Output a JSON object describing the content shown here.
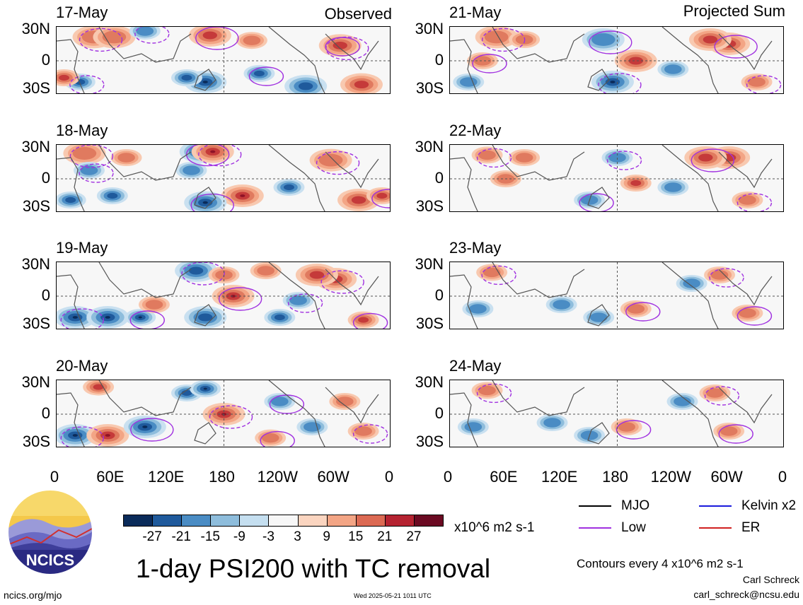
{
  "header": {
    "left_label": "Observed",
    "right_label": "Projected Sum"
  },
  "chart_data": {
    "type": "heatmap",
    "title": "1-day PSI200 with TC removal",
    "units": "x10^6 m2 s-1",
    "contour_note": "Contours every 4 x10^6 m2 s-1",
    "y_ticks": [
      "30N",
      "0",
      "30S"
    ],
    "x_ticks": [
      "0",
      "60E",
      "120E",
      "180",
      "120W",
      "60W",
      "0"
    ],
    "colorbar": {
      "ticks": [
        "-27",
        "-21",
        "-15",
        "-9",
        "-3",
        "3",
        "9",
        "15",
        "21",
        "27"
      ],
      "colors": [
        "#0a2b5a",
        "#1f5a9c",
        "#4a8cc4",
        "#8ebddc",
        "#c5dff0",
        "#f7f7f7",
        "#fbd5c0",
        "#f3a585",
        "#dc6a53",
        "#b52331",
        "#6b0a22"
      ]
    },
    "legend": [
      {
        "name": "MJO",
        "color": "#000000"
      },
      {
        "name": "Kelvin x2",
        "color": "#1a1adc"
      },
      {
        "name": "Low",
        "color": "#a030e0"
      },
      {
        "name": "ER",
        "color": "#d02020"
      }
    ],
    "observed_panels": [
      {
        "date": "17-May",
        "blobs": [
          [
            40,
            28,
            1,
            2
          ],
          [
            62,
            28,
            1,
            2
          ],
          [
            165,
            30,
            2,
            2
          ],
          [
            210,
            24,
            1,
            1
          ],
          [
            95,
            35,
            -1,
            1
          ],
          [
            160,
            -25,
            -3,
            2
          ],
          [
            218,
            -15,
            -2,
            1
          ],
          [
            268,
            -30,
            -2,
            2
          ],
          [
            25,
            -25,
            -2,
            1
          ],
          [
            140,
            -20,
            -2,
            1
          ],
          [
            300,
            20,
            1,
            1
          ],
          [
            328,
            -28,
            2,
            2
          ],
          [
            305,
            18,
            2,
            2
          ],
          [
            8,
            -20,
            2,
            1
          ]
        ]
      },
      {
        "date": "18-May",
        "blobs": [
          [
            30,
            30,
            1,
            2
          ],
          [
            75,
            25,
            1,
            1
          ],
          [
            155,
            32,
            -3,
            2
          ],
          [
            145,
            10,
            -1,
            1
          ],
          [
            168,
            32,
            3,
            2
          ],
          [
            200,
            -20,
            3,
            2
          ],
          [
            160,
            -28,
            -3,
            2
          ],
          [
            250,
            -10,
            -2,
            1
          ],
          [
            295,
            22,
            1,
            2
          ],
          [
            325,
            -25,
            2,
            2
          ],
          [
            350,
            -20,
            2,
            1
          ],
          [
            15,
            -25,
            -2,
            1
          ],
          [
            35,
            10,
            -1,
            1
          ],
          [
            60,
            -20,
            -2,
            1
          ]
        ]
      },
      {
        "date": "19-May",
        "blobs": [
          [
            20,
            -25,
            -3,
            2
          ],
          [
            55,
            -25,
            -3,
            2
          ],
          [
            90,
            -25,
            -3,
            1
          ],
          [
            160,
            -25,
            -2,
            2
          ],
          [
            150,
            30,
            -2,
            2
          ],
          [
            180,
            25,
            1,
            1
          ],
          [
            190,
            0,
            3,
            2
          ],
          [
            105,
            -10,
            1,
            1
          ],
          [
            300,
            20,
            2,
            2
          ],
          [
            280,
            25,
            2,
            2
          ],
          [
            330,
            -28,
            2,
            1
          ],
          [
            225,
            30,
            1,
            1
          ],
          [
            260,
            -5,
            -1,
            1
          ],
          [
            240,
            -25,
            -2,
            1
          ]
        ]
      },
      {
        "date": "20-May",
        "blobs": [
          [
            20,
            -25,
            -3,
            2
          ],
          [
            55,
            -25,
            3,
            2
          ],
          [
            95,
            -15,
            -3,
            2
          ],
          [
            140,
            25,
            -2,
            1
          ],
          [
            180,
            0,
            3,
            2
          ],
          [
            160,
            30,
            -3,
            1
          ],
          [
            240,
            15,
            -1,
            1
          ],
          [
            310,
            15,
            1,
            1
          ],
          [
            330,
            -20,
            1,
            1
          ],
          [
            45,
            32,
            2,
            1
          ],
          [
            230,
            -28,
            1,
            1
          ],
          [
            275,
            -15,
            -1,
            1
          ]
        ]
      }
    ],
    "projected_panels": [
      {
        "date": "21-May",
        "blobs": [
          [
            50,
            28,
            1,
            2
          ],
          [
            80,
            25,
            1,
            1
          ],
          [
            165,
            25,
            -1,
            2
          ],
          [
            200,
            0,
            2,
            2
          ],
          [
            175,
            -25,
            -3,
            2
          ],
          [
            240,
            -10,
            -1,
            1
          ],
          [
            300,
            20,
            2,
            2
          ],
          [
            280,
            25,
            2,
            2
          ],
          [
            330,
            -25,
            1,
            1
          ],
          [
            20,
            -25,
            -1,
            1
          ],
          [
            35,
            0,
            1,
            1
          ]
        ]
      },
      {
        "date": "22-May",
        "blobs": [
          [
            40,
            28,
            1,
            1
          ],
          [
            80,
            25,
            1,
            1
          ],
          [
            150,
            -25,
            -1,
            1
          ],
          [
            200,
            -5,
            2,
            1
          ],
          [
            180,
            25,
            -1,
            1
          ],
          [
            300,
            25,
            2,
            2
          ],
          [
            275,
            25,
            2,
            2
          ],
          [
            240,
            -10,
            -1,
            1
          ],
          [
            320,
            -25,
            1,
            1
          ],
          [
            60,
            0,
            1,
            1
          ]
        ]
      },
      {
        "date": "23-May",
        "blobs": [
          [
            45,
            28,
            1,
            1
          ],
          [
            120,
            -10,
            -1,
            1
          ],
          [
            200,
            -15,
            1,
            1
          ],
          [
            160,
            -25,
            -1,
            1
          ],
          [
            290,
            25,
            1,
            1
          ],
          [
            260,
            15,
            -1,
            1
          ],
          [
            320,
            -20,
            1,
            1
          ],
          [
            30,
            -15,
            -1,
            1
          ]
        ]
      },
      {
        "date": "24-May",
        "blobs": [
          [
            40,
            28,
            1,
            1
          ],
          [
            110,
            -10,
            -1,
            1
          ],
          [
            190,
            -15,
            1,
            1
          ],
          [
            150,
            -25,
            -1,
            1
          ],
          [
            285,
            25,
            1,
            1
          ],
          [
            250,
            15,
            -1,
            1
          ],
          [
            300,
            -20,
            1,
            1
          ],
          [
            25,
            -15,
            -1,
            1
          ]
        ]
      }
    ]
  },
  "footer": {
    "logo_text": "NCICS",
    "website": "ncics.org/mjo",
    "timestamp": "Wed 2025-05-21 1011 UTC",
    "author": "Carl Schreck",
    "email": "carl_schreck@ncsu.edu"
  }
}
